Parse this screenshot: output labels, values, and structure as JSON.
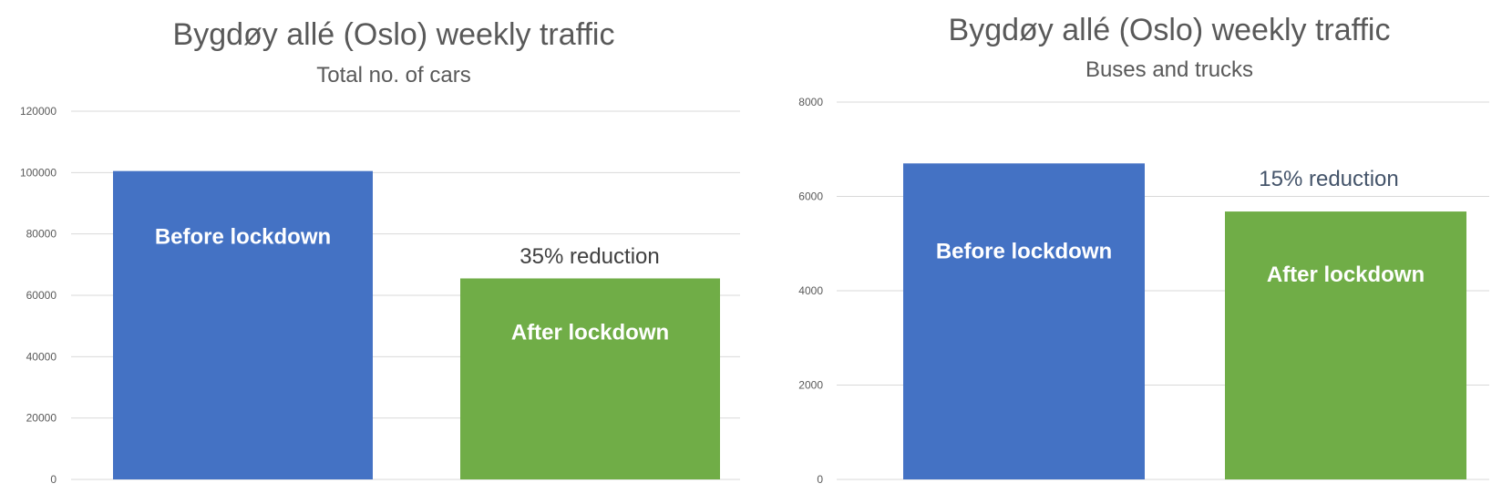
{
  "colors": {
    "before": "#4472C4",
    "after": "#70AD47",
    "note_left": "#404040",
    "note_right": "#44546A"
  },
  "chart_data": [
    {
      "type": "bar",
      "title": "Bygdøy allé (Oslo) weekly traffic",
      "subtitle": "Total no. of cars",
      "categories": [
        "Before lockdown",
        "After lockdown"
      ],
      "values": [
        100500,
        65500
      ],
      "ylim": [
        0,
        120000
      ],
      "yticks": [
        0,
        20000,
        40000,
        60000,
        80000,
        100000,
        120000
      ],
      "grid": true,
      "annotations": [
        "35% reduction"
      ]
    },
    {
      "type": "bar",
      "title": "Bygdøy allé (Oslo) weekly traffic",
      "subtitle": "Buses and trucks",
      "categories": [
        "Before lockdown",
        "After lockdown"
      ],
      "values": [
        6700,
        5680
      ],
      "ylim": [
        0,
        8000
      ],
      "yticks": [
        0,
        2000,
        4000,
        6000,
        8000
      ],
      "grid": true,
      "annotations": [
        "15% reduction"
      ]
    }
  ]
}
